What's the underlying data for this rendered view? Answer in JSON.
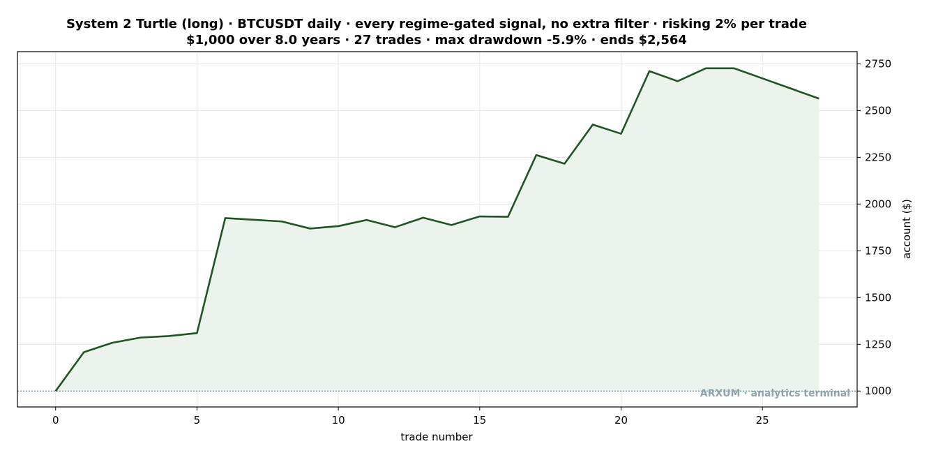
{
  "chart_data": {
    "type": "area",
    "title": "System 2 Turtle (long) · BTCUSDT daily · every regime-gated signal, no extra filter · risking 2% per trade",
    "subtitle": "$1,000 over 8.0 years · 27 trades · max drawdown -5.9% · ends $2,564",
    "xlabel": "trade number",
    "ylabel": "account ($)",
    "xlim": [
      -1.35,
      28.35
    ],
    "ylim": [
      915,
      2815
    ],
    "x_ticks": [
      0,
      5,
      10,
      15,
      20,
      25
    ],
    "y_ticks": [
      1000,
      1250,
      1500,
      1750,
      2000,
      2250,
      2500,
      2750
    ],
    "y_axis_side": "right",
    "grid": true,
    "baseline": 1000,
    "x": [
      0,
      1,
      2,
      3,
      4,
      5,
      6,
      7,
      8,
      9,
      10,
      11,
      12,
      13,
      14,
      15,
      16,
      17,
      18,
      19,
      20,
      21,
      22,
      23,
      24,
      25,
      26,
      27
    ],
    "series": [
      {
        "values": [
          1000,
          1208,
          1258,
          1286,
          1294,
          1310,
          1925,
          1916,
          1907,
          1869,
          1882,
          1915,
          1876,
          1927,
          1888,
          1934,
          1932,
          2262,
          2216,
          2425,
          2376,
          2711,
          2657,
          2726,
          2726,
          2672,
          2618,
          2564
        ]
      }
    ],
    "colors": {
      "line": "#1e5522",
      "fill": "#ecf2ec",
      "grid": "#e6e6e6",
      "baseline": "#6f8d99",
      "watermark": "#8da3ad"
    }
  },
  "watermark": "ARXUM · analytics terminal"
}
